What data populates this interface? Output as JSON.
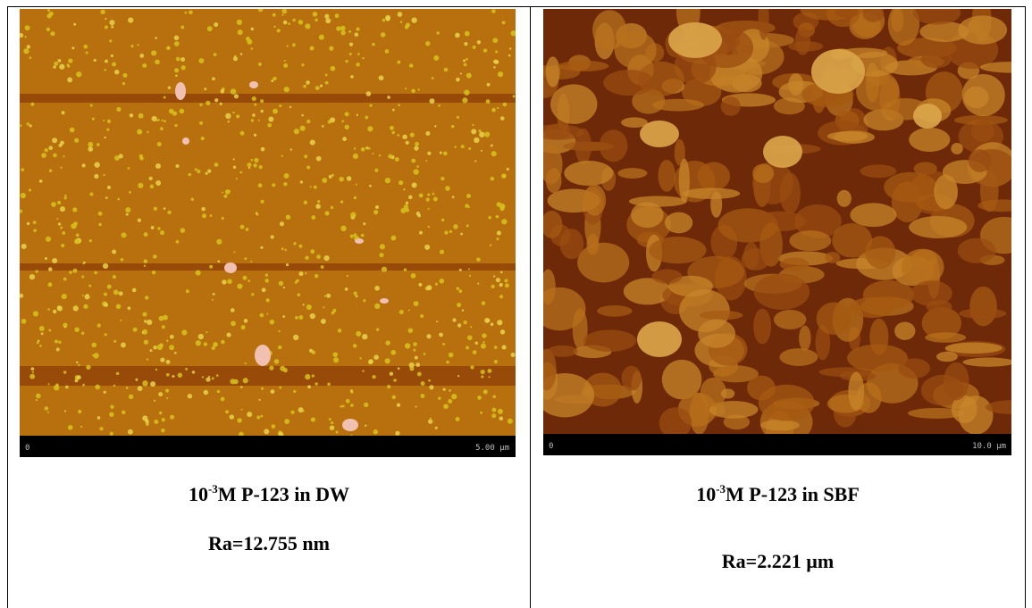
{
  "table": {
    "cells": [
      {
        "image": {
          "scale_start": "0",
          "scale_end": "5.00 µm"
        },
        "caption": {
          "base": "10",
          "exponent": "-3",
          "rest": "M P-123 in DW"
        },
        "roughness": "Ra=12.755 nm"
      },
      {
        "image": {
          "scale_start": "0",
          "scale_end": "10.0 µm"
        },
        "caption": {
          "base": "10",
          "exponent": "-3",
          "rest": "M P-123 in SBF"
        },
        "roughness": "Ra=2.221 µm"
      }
    ]
  }
}
